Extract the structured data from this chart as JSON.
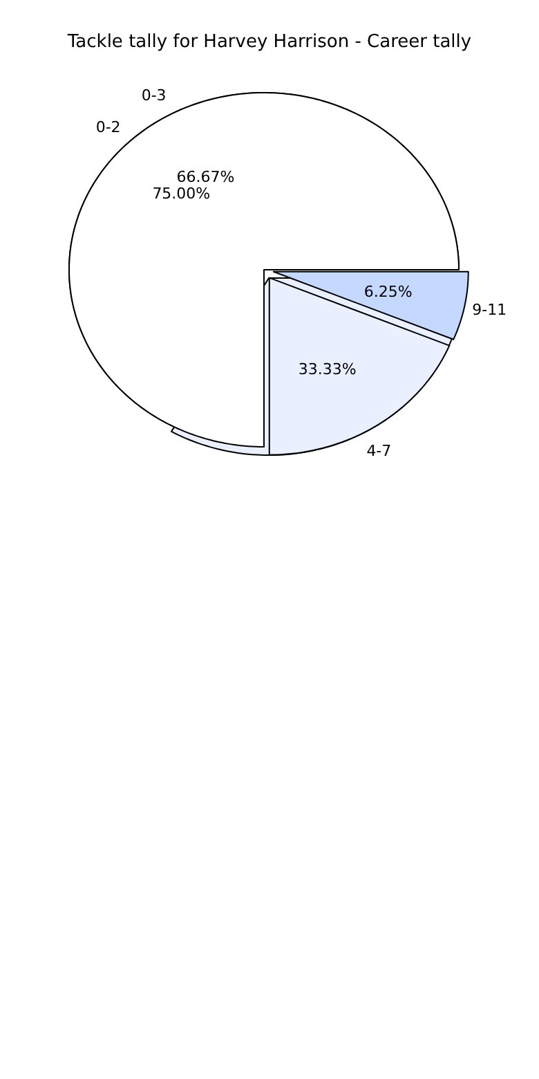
{
  "chart_data": [
    {
      "type": "pie",
      "title": "Tackle tally for Harvey Harrison - Career tally",
      "categories": [
        "0-3",
        "4-7"
      ],
      "values": [
        66.67,
        33.33
      ],
      "colors": [
        "#ffffff",
        "#eaf0ff"
      ],
      "value_labels": [
        "66.67%",
        "33.33%"
      ]
    },
    {
      "type": "pie",
      "categories": [
        "0-2",
        null,
        "9-11"
      ],
      "values": [
        75,
        18.75,
        6.25
      ],
      "colors": [
        "#ffffff",
        "#eaf0ff",
        "#c5d8ff"
      ],
      "value_labels": [
        "75.00%",
        null,
        "6.25%"
      ]
    }
  ]
}
